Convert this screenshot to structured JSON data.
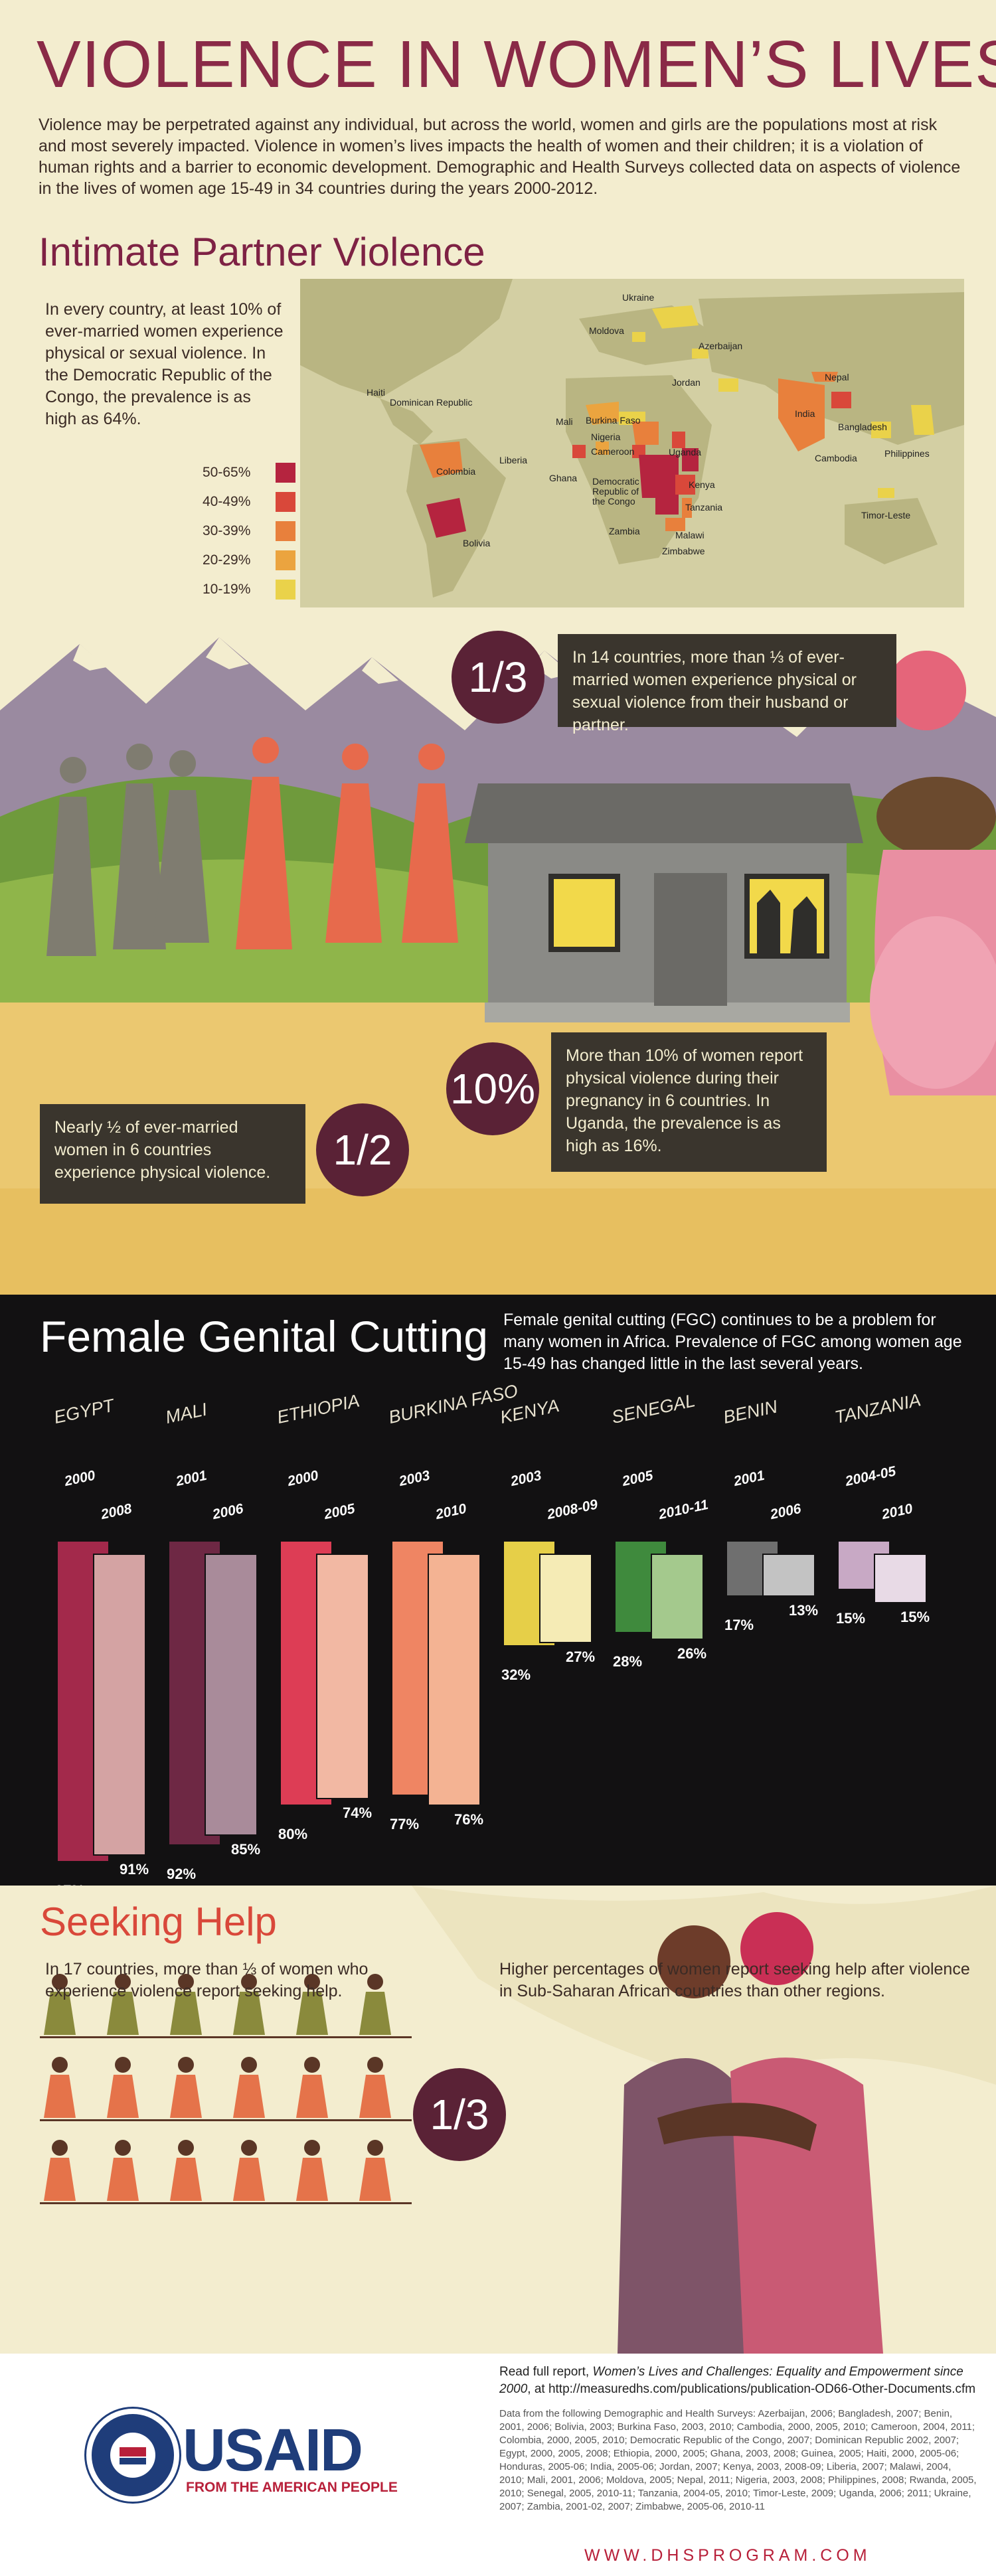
{
  "header": {
    "title": "VIOLENCE IN WOMEN’S LIVES",
    "intro": "Violence may be perpetrated against any individual, but across the world, women and girls are the populations most at risk and most severely impacted. Violence in women’s lives impacts the health of women and their children; it is a violation of human rights and a barrier to economic development. Demographic and Health Surveys collected data on aspects of violence in the lives of women age 15-49 in 34 countries during the years 2000-2012."
  },
  "ipv": {
    "title": "Intimate Partner Violence",
    "text": "In every country, at least 10% of ever-married women experience physical or sexual violence. In the Democratic Republic of the Congo, the prevalence is as high as 64%.",
    "legend": [
      {
        "label": "50-65%",
        "color": "#b5243f"
      },
      {
        "label": "40-49%",
        "color": "#d9483a"
      },
      {
        "label": "30-39%",
        "color": "#e8803c"
      },
      {
        "label": "20-29%",
        "color": "#eba43f"
      },
      {
        "label": "10-19%",
        "color": "#ead24a"
      }
    ],
    "map_labels": [
      "Ukraine",
      "Moldova",
      "Azerbaijan",
      "Haiti",
      "Dominican Republic",
      "Jordan",
      "Nepal",
      "Mali",
      "Burkina Faso",
      "Nigeria",
      "India",
      "Bangladesh",
      "Cameroon",
      "Uganda",
      "Cambodia",
      "Philippines",
      "Liberia",
      "Ghana",
      "Democratic Republic of the Congo",
      "Kenya",
      "Colombia",
      "Tanzania",
      "Zambia",
      "Malawi",
      "Zimbabwe",
      "Bolivia",
      "Timor-Leste"
    ],
    "callout_third": {
      "badge": "1/3",
      "text": "In 14 countries, more than ⅓ of ever-married women experience physical or sexual violence from their husband or partner."
    },
    "callout_half": {
      "badge": "1/2",
      "text": "Nearly ½ of ever-married women in 6 countries experience physical violence."
    },
    "callout_ten": {
      "badge": "10%",
      "text": "More than 10% of women report physical violence during their pregnancy in 6 countries. In Uganda, the prevalence is as high as 16%."
    }
  },
  "fgc": {
    "title": "Female Genital Cutting",
    "description": "Female genital cutting (FGC) continues to be a problem for many women in Africa. Prevalence of FGC among women age 15-49 has changed little in the last several years."
  },
  "chart_data": {
    "type": "bar",
    "title": "Female Genital Cutting",
    "series": [
      {
        "country": "EGYPT",
        "years": [
          "2000",
          "2008"
        ],
        "values": [
          97,
          91
        ],
        "colors": [
          "#a3294b",
          "#d4a3a3"
        ]
      },
      {
        "country": "MALI",
        "years": [
          "2001",
          "2006"
        ],
        "values": [
          92,
          85
        ],
        "colors": [
          "#6e2844",
          "#a98b9a"
        ]
      },
      {
        "country": "ETHIOPIA",
        "years": [
          "2000",
          "2005"
        ],
        "values": [
          80,
          74
        ],
        "colors": [
          "#dd3d55",
          "#f2b8a3"
        ]
      },
      {
        "country": "BURKINA FASO",
        "years": [
          "2003",
          "2010"
        ],
        "values": [
          77,
          76
        ],
        "colors": [
          "#ef8563",
          "#f4b393"
        ]
      },
      {
        "country": "KENYA",
        "years": [
          "2003",
          "2008-09"
        ],
        "values": [
          32,
          27
        ],
        "colors": [
          "#e6cf48",
          "#f5ebb5"
        ]
      },
      {
        "country": "SENEGAL",
        "years": [
          "2005",
          "2010-11"
        ],
        "values": [
          28,
          26
        ],
        "colors": [
          "#3f8a3d",
          "#a4c98d"
        ]
      },
      {
        "country": "BENIN",
        "years": [
          "2001",
          "2006"
        ],
        "values": [
          17,
          13
        ],
        "colors": [
          "#6f6f6f",
          "#c3c3c3"
        ]
      },
      {
        "country": "TANZANIA",
        "years": [
          "2004-05",
          "2010"
        ],
        "values": [
          15,
          15
        ],
        "colors": [
          "#c8a9c5",
          "#e8dae6"
        ]
      }
    ],
    "ylim": [
      0,
      100
    ]
  },
  "help": {
    "title": "Seeking Help",
    "left": "In 17 countries, more than ⅓ of women who experience violence report seeking help.",
    "right": "Higher percentages of women report seeking help after violence in Sub-Saharan African countries than other regions.",
    "badge": "1/3"
  },
  "footer": {
    "logo_text": "USAID",
    "logo_sub": "FROM THE AMERICAN PEOPLE",
    "report_prefix": "Read full report, ",
    "report_title": "Women’s Lives and Challenges: Equality and Empowerment since 2000",
    "report_suffix": ", at http://measuredhs.com/publications/publication-OD66-Other-Documents.cfm",
    "sources": "Data from the following Demographic and Health Surveys: Azerbaijan, 2006; Bangladesh, 2007; Benin, 2001, 2006; Bolivia, 2003; Burkina Faso, 2003, 2010; Cambodia, 2000, 2005, 2010; Cameroon, 2004, 2011; Colombia, 2000, 2005, 2010; Democratic Republic of the Congo, 2007; Dominican Republic 2002, 2007; Egypt, 2000, 2005, 2008; Ethiopia, 2000, 2005; Ghana, 2003, 2008; Guinea, 2005; Haiti, 2000, 2005-06; Honduras, 2005-06; India, 2005-06; Jordan, 2007; Kenya, 2003, 2008-09; Liberia, 2007; Malawi, 2004, 2010; Mali, 2001, 2006; Moldova, 2005; Nepal, 2011; Nigeria, 2003, 2008; Philippines, 2008; Rwanda, 2005, 2010; Senegal, 2005, 2010-11; Tanzania, 2004-05, 2010; Timor-Leste, 2009; Uganda, 2006; 2011; Ukraine, 2007; Zambia, 2001-02, 2007; Zimbabwe, 2005-06, 2010-11",
    "website": "WWW.DHSPROGRAM.COM"
  }
}
